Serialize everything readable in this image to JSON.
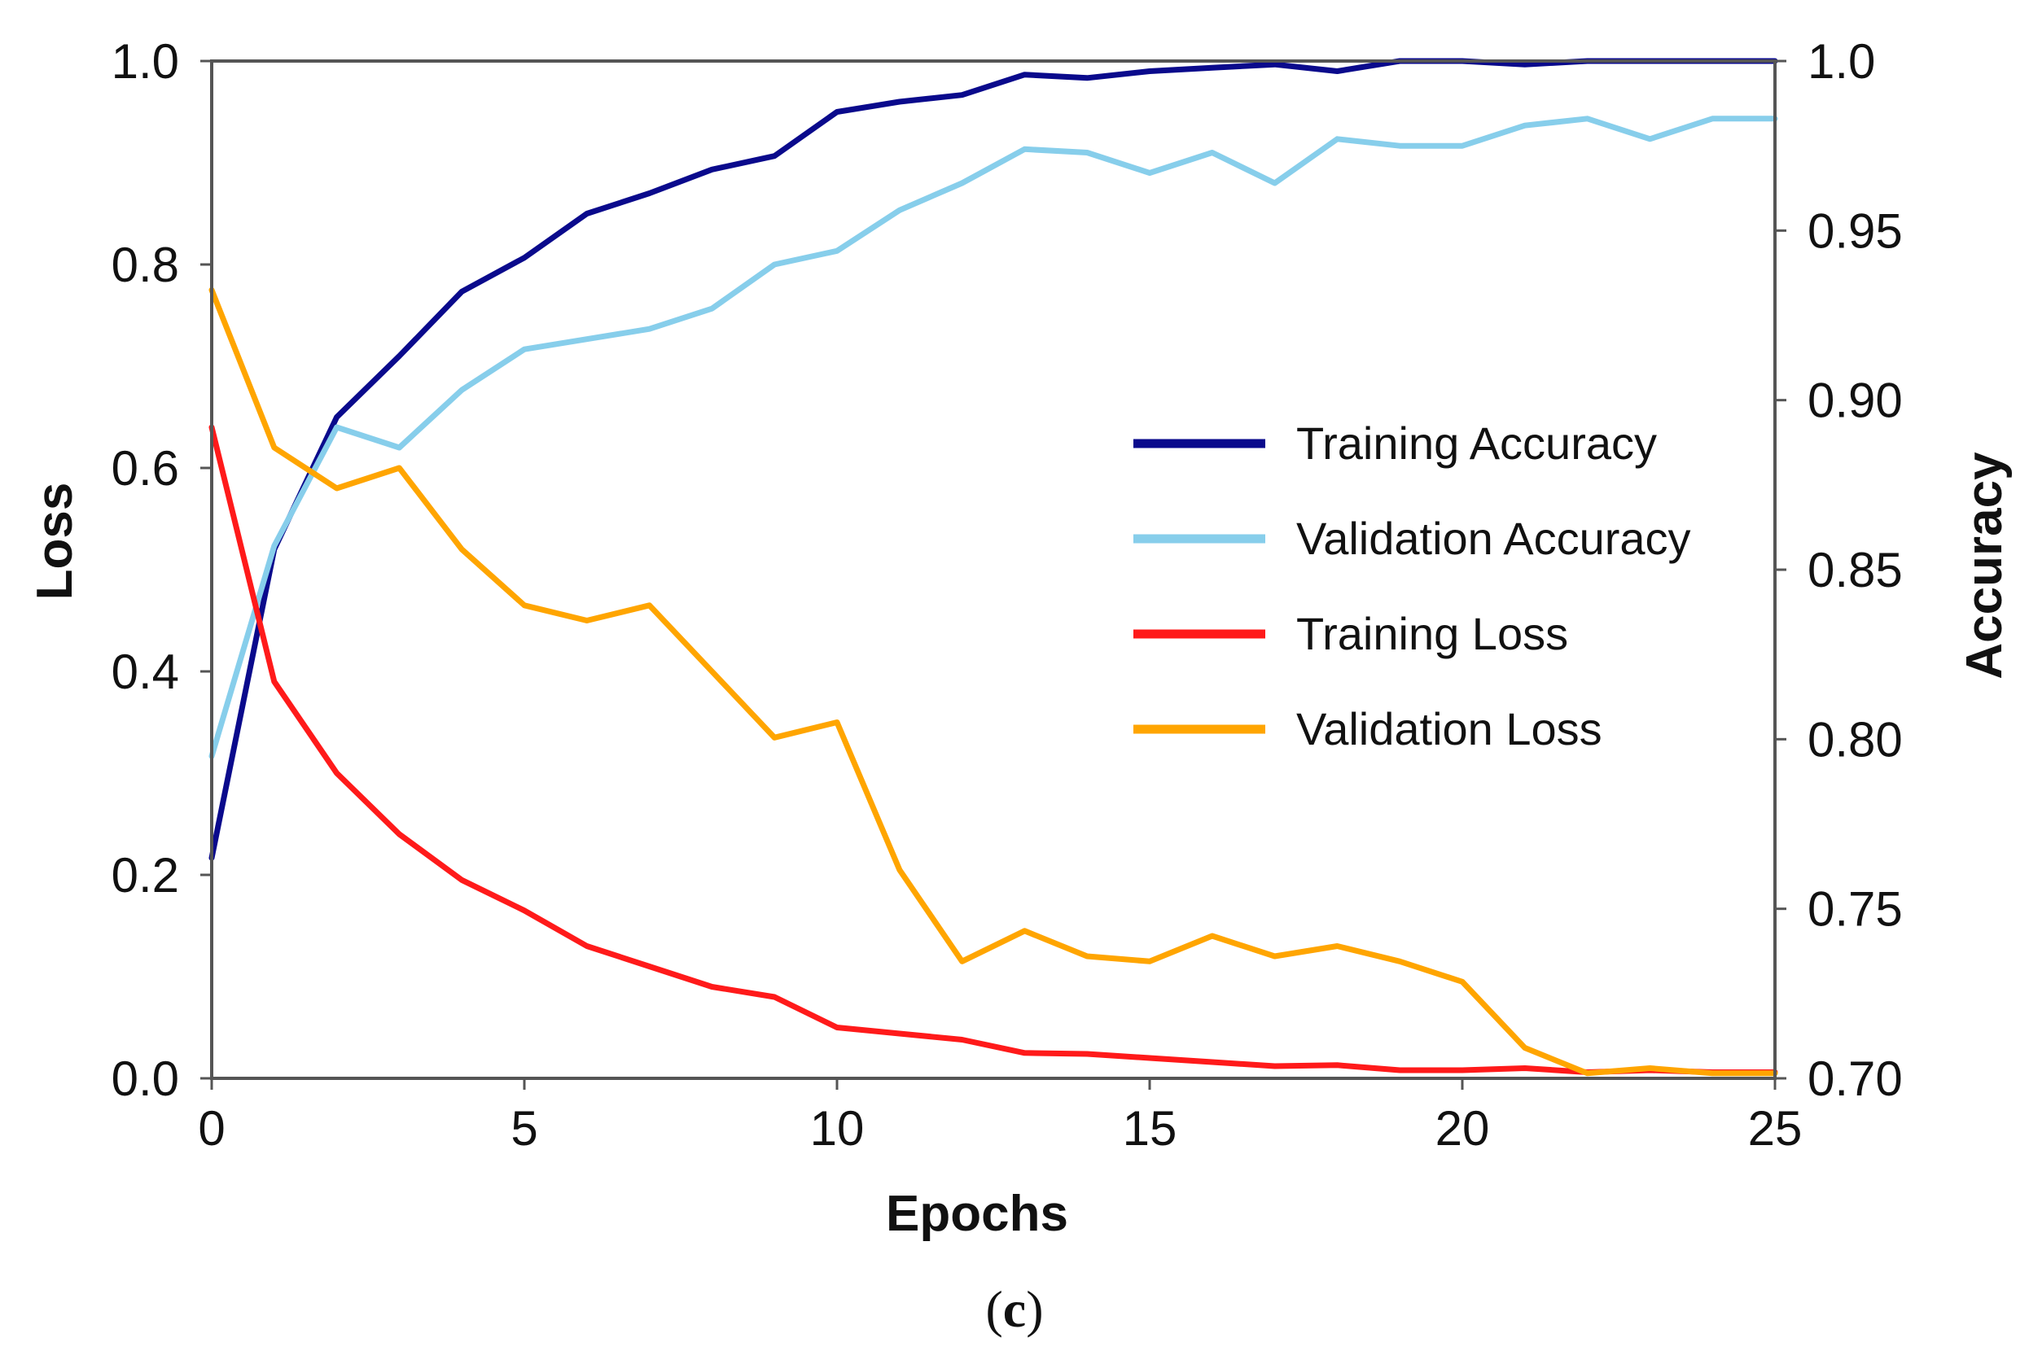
{
  "chart_data": {
    "type": "line",
    "title": "",
    "caption_left": "(",
    "caption_letter": "c",
    "caption_right": ")",
    "xlabel": "Epochs",
    "ylabel_left": "Loss",
    "ylabel_right": "Accuracy",
    "xlim": [
      0,
      25
    ],
    "ylim_left": [
      0.0,
      1.0
    ],
    "ylim_right": [
      0.7,
      1.0
    ],
    "x_ticks": [
      "0",
      "5",
      "10",
      "15",
      "20",
      "25"
    ],
    "y_left_ticks": [
      "0.0",
      "0.2",
      "0.4",
      "0.6",
      "0.8",
      "1.0"
    ],
    "y_right_ticks": [
      "0.70",
      "0.75",
      "0.80",
      "0.85",
      "0.90",
      "0.95",
      "1.0"
    ],
    "x": [
      0,
      1,
      2,
      3,
      4,
      5,
      6,
      7,
      8,
      9,
      10,
      11,
      12,
      13,
      14,
      15,
      16,
      17,
      18,
      19,
      20,
      21,
      22,
      23,
      24,
      25
    ],
    "legend_position": "center-right",
    "series": [
      {
        "name": "Training Accuracy",
        "axis": "right",
        "color": "#0a0a8c",
        "values": [
          0.765,
          0.856,
          0.895,
          0.913,
          0.932,
          0.942,
          0.955,
          0.961,
          0.968,
          0.972,
          0.985,
          0.988,
          0.99,
          0.996,
          0.995,
          0.997,
          0.998,
          0.999,
          0.997,
          1.0,
          1.0,
          0.999,
          1.0,
          1.0,
          1.0,
          1.0
        ]
      },
      {
        "name": "Validation Accuracy",
        "axis": "right",
        "color": "#87ceeb",
        "values": [
          0.795,
          0.857,
          0.892,
          0.886,
          0.903,
          0.915,
          0.918,
          0.921,
          0.927,
          0.94,
          0.944,
          0.956,
          0.964,
          0.974,
          0.973,
          0.967,
          0.973,
          0.964,
          0.977,
          0.975,
          0.975,
          0.981,
          0.983,
          0.977,
          0.983,
          0.983
        ]
      },
      {
        "name": "Training Loss",
        "axis": "left",
        "color": "#ff1a1a",
        "values": [
          0.64,
          0.39,
          0.3,
          0.24,
          0.195,
          0.165,
          0.13,
          0.11,
          0.09,
          0.08,
          0.05,
          0.044,
          0.038,
          0.025,
          0.024,
          0.02,
          0.016,
          0.012,
          0.013,
          0.008,
          0.008,
          0.01,
          0.006,
          0.008,
          0.006,
          0.006
        ]
      },
      {
        "name": "Validation Loss",
        "axis": "left",
        "color": "#ffa500",
        "values": [
          0.775,
          0.62,
          0.58,
          0.6,
          0.52,
          0.465,
          0.45,
          0.465,
          0.4,
          0.335,
          0.35,
          0.205,
          0.115,
          0.145,
          0.12,
          0.115,
          0.14,
          0.12,
          0.13,
          0.115,
          0.095,
          0.03,
          0.005,
          0.01,
          0.005,
          0.005
        ]
      }
    ]
  }
}
